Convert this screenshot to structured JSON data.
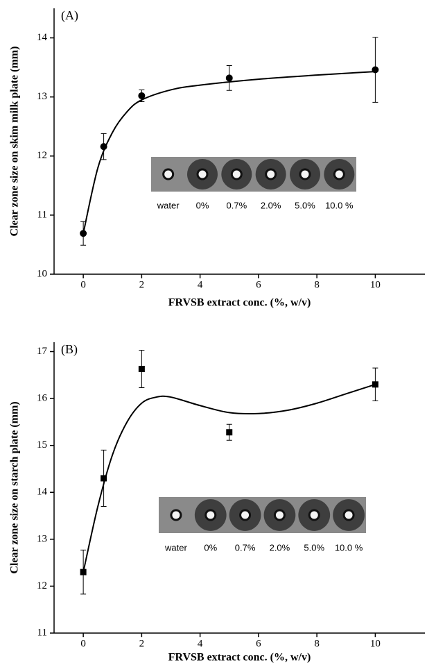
{
  "chart_data": [
    {
      "type": "scatter",
      "annotation": "(A)",
      "marker": "circle",
      "color": "#000000",
      "x_label": "FRVSB extract conc. (%, w/v)",
      "y_label": "Clear zone size on skim milk plate (mm)",
      "x": [
        0,
        0.7,
        2,
        5,
        10
      ],
      "values": [
        10.69,
        12.16,
        13.02,
        13.32,
        13.46
      ],
      "errors": [
        0.2,
        0.22,
        0.1,
        0.21,
        0.55
      ],
      "fit": {
        "x": [
          0,
          0.5,
          1,
          1.5,
          2,
          3,
          4,
          6,
          8,
          10
        ],
        "y": [
          10.69,
          11.8,
          12.4,
          12.75,
          12.95,
          13.12,
          13.2,
          13.3,
          13.37,
          13.43
        ]
      },
      "xlim": [
        -1,
        11.7
      ],
      "ylim": [
        10,
        14.5
      ],
      "xticks": [
        0,
        2,
        4,
        6,
        8,
        10
      ],
      "yticks": [
        10,
        11,
        12,
        13,
        14
      ],
      "inset_labels": [
        "water",
        "0%",
        "0.7%",
        "2.0%",
        "5.0%",
        "10.0 %"
      ]
    },
    {
      "type": "scatter",
      "annotation": "(B)",
      "marker": "square",
      "color": "#000000",
      "x_label": "FRVSB extract conc. (%, w/v)",
      "y_label": "Clear zone size on starch plate (mm)",
      "x": [
        0,
        0.7,
        2,
        5,
        10
      ],
      "values": [
        12.3,
        14.3,
        16.63,
        15.28,
        16.3
      ],
      "errors": [
        0.47,
        0.6,
        0.4,
        0.17,
        0.35
      ],
      "fit": {
        "x": [
          0,
          0.5,
          1,
          1.5,
          2,
          2.5,
          3,
          4,
          5,
          6,
          7,
          8,
          9,
          10
        ],
        "y": [
          12.3,
          13.7,
          14.8,
          15.5,
          15.9,
          16.03,
          16.03,
          15.85,
          15.7,
          15.68,
          15.75,
          15.9,
          16.1,
          16.3
        ]
      },
      "xlim": [
        -1,
        11.7
      ],
      "ylim": [
        11,
        17.2
      ],
      "xticks": [
        0,
        2,
        4,
        6,
        8,
        10
      ],
      "yticks": [
        11,
        12,
        13,
        14,
        15,
        16,
        17
      ],
      "inset_labels": [
        "water",
        "0%",
        "0.7%",
        "2.0%",
        "5.0%",
        "10.0 %"
      ]
    }
  ]
}
